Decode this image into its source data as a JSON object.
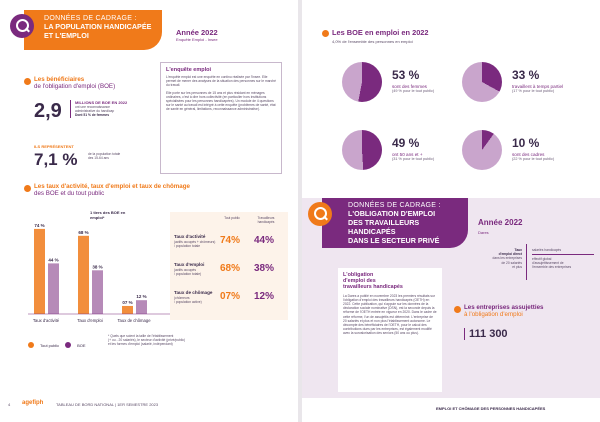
{
  "left": {
    "header": {
      "sup": "DONNÉES DE CADRAGE :",
      "title_line1": "LA POPULATION HANDICAPÉE",
      "title_line2": "ET L'EMPLOI"
    },
    "year": {
      "title": "Année 2022",
      "sub": "Enquête Emploi - Insee"
    },
    "beneficiaires": {
      "heading1": "Les bénéficiaires",
      "heading2": "de l'obligation d'emploi (BOE)",
      "value": "2,9",
      "value_label": "MILLIONS DE BOE EN 2022",
      "value_desc1": "ont une reconnaissance",
      "value_desc2": "administrative du handicap",
      "value_women": "Dont 51 % de femmes",
      "represent_label1": "ILS REPRÉSENTENT",
      "represent_value": "7,1 %",
      "represent_desc1": "de la population totale",
      "represent_desc2": "des 15-64 ans"
    },
    "enquete": {
      "title": "L'enquête emploi",
      "p1": "L'enquête emploi est une enquête en continu réalisée par l'Insee. Elle permet de mener des analyses de la situation des personnes sur le marché du travail.",
      "p2": "Elle porte sur les personnes de 15 ans et plus résidant en ménages ordinaires, c'est à dire hors collectivité (en particulier hors institutions spécialisées pour les personnes handicapées). Un module de 4 questions sur le santé au travail est intégré à cette enquête (problèmes de santé, état de santé en général, limitations, reconnaissance administrative)."
    },
    "taux": {
      "heading1": "Les taux d'activité, taux d'emploi et taux de chômage",
      "heading2": "des BOE et du tout public",
      "note": "1 tiers des BOE en emploi*",
      "legend_tout_public": "Tout public",
      "legend_boe": "BOE",
      "footnote1": "* Quels que soient la taille de l'établissement",
      "footnote2": "(+ ou - 20 salariés), le secteur d'activité (privé/public)",
      "footnote3": "et les formes d'emploi (salarié, indépendant)",
      "table_head_tout": "Tout public",
      "table_head_trav1": "Travailleurs",
      "table_head_trav2": "handicapés",
      "rows": [
        {
          "label": "Taux d'activité",
          "sub1": "(actifs occupés + chômeurs)",
          "sub2": "/ population totale",
          "tout": "74%",
          "trav": "44%"
        },
        {
          "label": "Taux d'emploi",
          "sub1": "(actifs occupés",
          "sub2": "/ population totale)",
          "tout": "68%",
          "trav": "38%"
        },
        {
          "label": "Taux de chômage",
          "sub1": "(chômeurs",
          "sub2": "/ population active)",
          "tout": "07%",
          "trav": "12%"
        }
      ]
    },
    "footer": {
      "page": "4",
      "brand": "agefiph",
      "text": "TABLEAU DE BORD NATIONAL  |  1ER SEMESTRE 2023"
    }
  },
  "right": {
    "boe": {
      "heading": "Les BOE en emploi en 2022",
      "sub": "4,0% de l'ensemble des personnes en emploi",
      "items": [
        {
          "pct": "53 %",
          "l1": "sont des femmes",
          "l2": "(49 % pour le tout public)",
          "frac": 0.53
        },
        {
          "pct": "33 %",
          "l1": "travaillent à temps partiel",
          "l2": "(17 % pour le tout public)",
          "frac": 0.33
        },
        {
          "pct": "49 %",
          "l1": "ont 50 ans et +",
          "l2": "(31 % pour le tout public)",
          "frac": 0.49
        },
        {
          "pct": "10 %",
          "l1": "sont des cadres",
          "l2": "(22 % pour le tout public)",
          "frac": 0.1
        }
      ]
    },
    "oblig": {
      "header_sup": "DONNÉES DE CADRAGE :",
      "header_l1": "L'OBLIGATION D'EMPLOI",
      "header_l2": "DES TRAVAILLEURS HANDICAPÉS",
      "header_l3": "DANS LE SECTEUR PRIVÉ",
      "year": "Année 2022",
      "year_sub": "Dares",
      "taux_label1": "Taux",
      "taux_label2": "d'emploi direct",
      "taux_label3": "dans les entreprises",
      "taux_label4": "de 20 salariés",
      "taux_label5": "et plus",
      "eq1": "salariés handicapés",
      "eq2": "effectif global",
      "eq3": "d'assujettissement de",
      "eq4": "l'ensemble des entreprises",
      "box_title1": "L'obligation",
      "box_title2": "d'emploi des",
      "box_title3": "travailleurs handicapés",
      "box_text": "La Dares a publié en novembre 2023 les premiers résultats sur l'obligation d'emploi des travailleurs handicapés (OETH) en 2022. Cette publication, qui s'appuie sur les données de la déclaration sociale nominative (DSN), est la seconde depuis la réforme de l'OETH entrée en vigueur en 2020. Dans le cadre de cette réforme, l'un de assujettis est déterminé. L'entreprise de 20 salariés et plus et non plus l'établissement autonome. Le décompte des bénéficiaires de l'OETH, pour le calcul des contributions dues par les entreprises, est également modifié avec la survalorisation des seniors (50 ans ou plus).",
      "assuj_heading1": "Les entreprises assujetties",
      "assuj_heading2": "à l'obligation d'emploi",
      "assuj_value": "111 300"
    },
    "footer": {
      "text": "EMPLOI ET CHÔMAGE DES PERSONNES HANDICAPÉES"
    }
  },
  "chart_data": {
    "type": "bar",
    "categories": [
      "Taux d'activité",
      "Taux d'emploi",
      "Taux de chômage"
    ],
    "series": [
      {
        "name": "Tout public",
        "values": [
          74,
          68,
          7
        ]
      },
      {
        "name": "BOE",
        "values": [
          44,
          38,
          12
        ]
      }
    ],
    "value_labels": [
      "74 %",
      "44 %",
      "68 %",
      "38 %",
      "07 %",
      "12 %"
    ],
    "ylim": [
      0,
      80
    ],
    "colors": {
      "tout_public": "#f07a1a",
      "boe": "#7a2a7e"
    }
  },
  "colors": {
    "purple": "#7a2a7e",
    "orange": "#f07a1a",
    "light_purple": "#efe6f0"
  }
}
